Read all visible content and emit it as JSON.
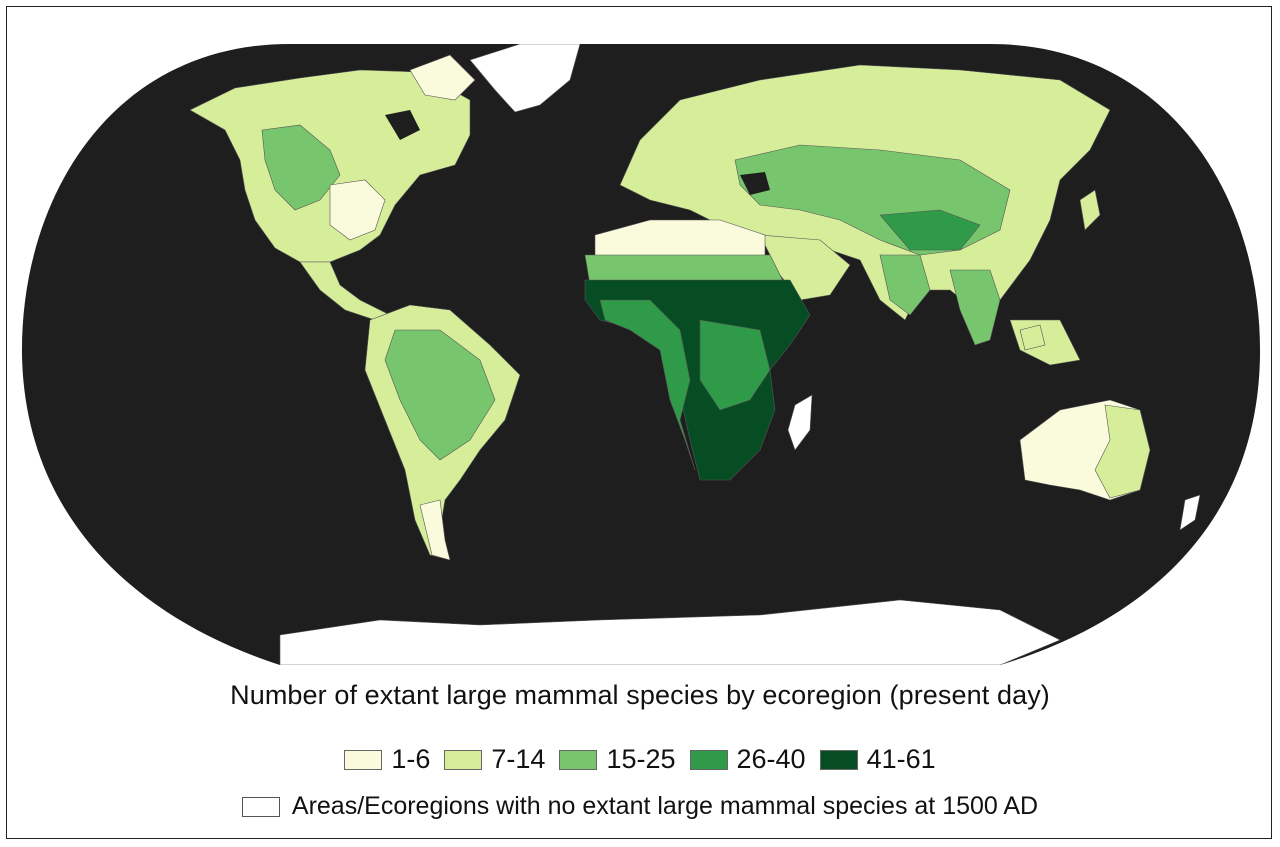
{
  "map": {
    "title": "Number of extant large mammal species by ecoregion (present day)",
    "ocean_color": "#1e1e1e",
    "legend": [
      {
        "label": "1-6",
        "color": "#fafadc"
      },
      {
        "label": "7-14",
        "color": "#d6ed9a"
      },
      {
        "label": "15-25",
        "color": "#77c66e"
      },
      {
        "label": "26-40",
        "color": "#2f9a48"
      },
      {
        "label": "41-61",
        "color": "#064d24"
      }
    ],
    "no_data": {
      "label": "Areas/Ecoregions with no extant large mammal species at 1500 AD",
      "color": "#ffffff"
    }
  }
}
